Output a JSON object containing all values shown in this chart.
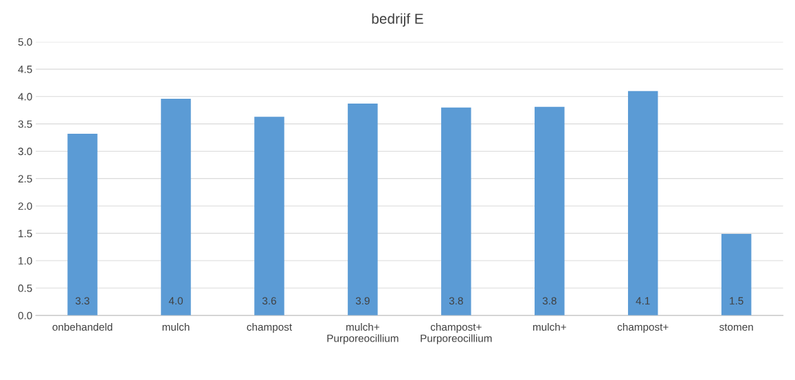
{
  "chart_data": {
    "type": "bar",
    "title": "bedrijf E",
    "categories": [
      "onbehandeld",
      "mulch",
      "champost",
      "mulch+\nPurporeocillium",
      "champost+\nPurporeocillium",
      "mulch+",
      "champost+",
      "stomen"
    ],
    "values": [
      3.32,
      3.96,
      3.63,
      3.87,
      3.8,
      3.81,
      4.1,
      1.49
    ],
    "value_labels": [
      "3.3",
      "4.0",
      "3.6",
      "3.9",
      "3.8",
      "3.8",
      "4.1",
      "1.5"
    ],
    "color": "#5b9bd5",
    "ylim": [
      0,
      5
    ],
    "yticks": [
      {
        "value": 0,
        "label": "0.0"
      },
      {
        "value": 0.5,
        "label": "0.5"
      },
      {
        "value": 1,
        "label": "1.0"
      },
      {
        "value": 1.5,
        "label": "1.5"
      },
      {
        "value": 2,
        "label": "2.0"
      },
      {
        "value": 2.5,
        "label": "2.5"
      },
      {
        "value": 3,
        "label": "3.0"
      },
      {
        "value": 3.5,
        "label": "3.5"
      },
      {
        "value": 4,
        "label": "4.0"
      },
      {
        "value": 4.5,
        "label": "4.5"
      },
      {
        "value": 5,
        "label": "5.0"
      }
    ],
    "grid": "y",
    "legend": false
  }
}
